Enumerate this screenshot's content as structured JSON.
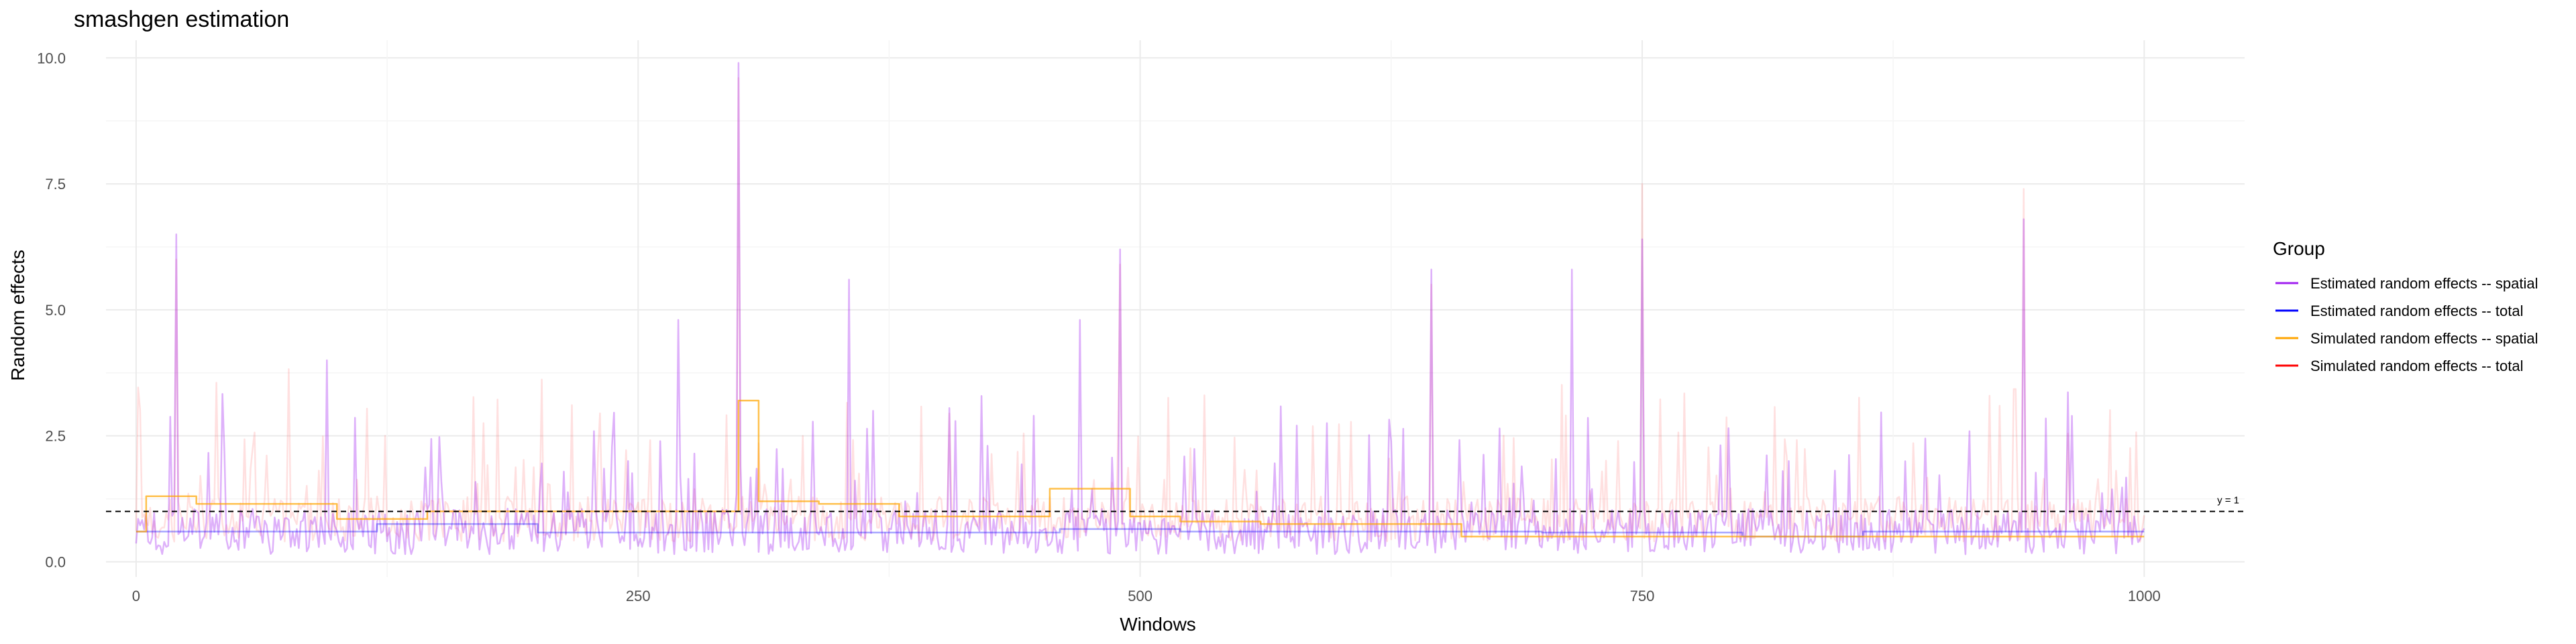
{
  "chart_data": {
    "type": "line",
    "title": "smashgen estimation",
    "xlabel": "Windows",
    "ylabel": "Random effects",
    "xlim": [
      -15,
      1050
    ],
    "ylim": [
      -0.3,
      10.35
    ],
    "x_ticks": [
      0,
      250,
      500,
      750,
      1000
    ],
    "x_tick_labels": [
      "0",
      "250",
      "500",
      "750",
      "1000"
    ],
    "y_ticks": [
      0,
      2.5,
      5,
      7.5,
      10
    ],
    "y_tick_labels": [
      "0.0",
      "2.5",
      "5.0",
      "7.5",
      "10.0"
    ],
    "grid": true,
    "legend_title": "Group",
    "legend_position": "right",
    "reference_line": {
      "y": 1,
      "label": "y = 1",
      "style": "dashed",
      "color": "#000000"
    },
    "series": [
      {
        "name": "Estimated random effects -- spatial",
        "color": "#a020f0",
        "opacity": 0.35,
        "peaks": [
          [
            20,
            6.5
          ],
          [
            300,
            9.9
          ],
          [
            245,
            2.0
          ],
          [
            490,
            6.2
          ],
          [
            750,
            6.4
          ],
          [
            940,
            6.8
          ],
          [
            355,
            5.6
          ],
          [
            645,
            5.8
          ],
          [
            715,
            5.8
          ],
          [
            95,
            4.0
          ],
          [
            470,
            4.8
          ],
          [
            270,
            4.8
          ]
        ]
      },
      {
        "name": "Estimated random effects -- total",
        "color": "#0000ff",
        "opacity": 0.35,
        "steps": [
          [
            0,
            0.6
          ],
          [
            120,
            0.75
          ],
          [
            200,
            0.58
          ],
          [
            460,
            0.65
          ],
          [
            520,
            0.6
          ],
          [
            700,
            0.58
          ],
          [
            800,
            0.5
          ],
          [
            860,
            0.6
          ],
          [
            1000,
            0.6
          ]
        ]
      },
      {
        "name": "Simulated random effects -- spatial",
        "color": "#ffa500",
        "opacity": 0.7,
        "steps": [
          [
            0,
            0.6
          ],
          [
            5,
            1.3
          ],
          [
            30,
            1.15
          ],
          [
            100,
            0.85
          ],
          [
            145,
            1.0
          ],
          [
            300,
            3.2
          ],
          [
            310,
            1.2
          ],
          [
            340,
            1.15
          ],
          [
            380,
            0.9
          ],
          [
            455,
            1.45
          ],
          [
            495,
            0.9
          ],
          [
            520,
            0.8
          ],
          [
            560,
            0.75
          ],
          [
            660,
            0.5
          ],
          [
            800,
            0.5
          ],
          [
            1000,
            0.5
          ]
        ]
      },
      {
        "name": "Simulated random effects -- total",
        "color": "#ff0000",
        "opacity": 0.12,
        "peaks": [
          [
            300,
            9.6
          ],
          [
            750,
            7.5
          ],
          [
            940,
            7.4
          ],
          [
            20,
            6.0
          ],
          [
            490,
            5.9
          ],
          [
            645,
            5.5
          ]
        ]
      }
    ]
  }
}
